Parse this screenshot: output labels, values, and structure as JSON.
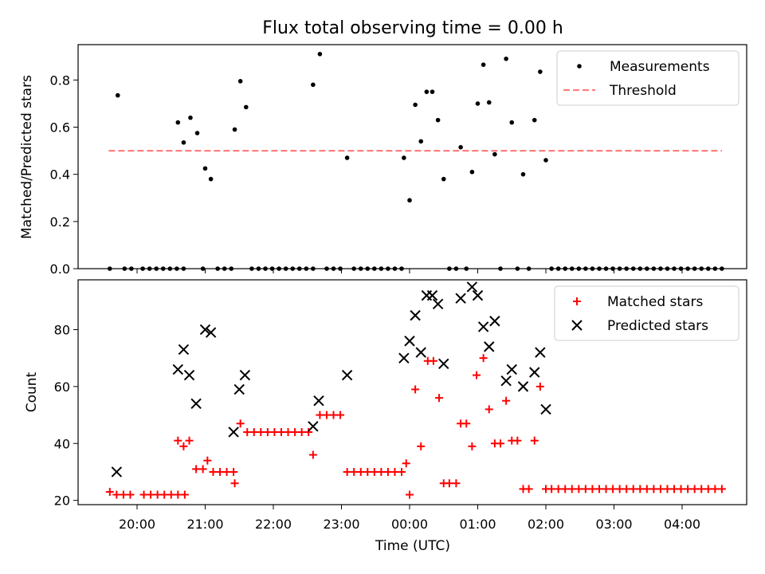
{
  "chart_data": [
    {
      "type": "scatter",
      "title": "Flux total observing time = 0.00 h",
      "ylabel": "Matched/Predicted stars",
      "ylim": [
        0.0,
        0.95
      ],
      "yticks": [
        "0.0",
        "0.2",
        "0.4",
        "0.6",
        "0.8"
      ],
      "xticks": [
        "20:00",
        "21:00",
        "22:00",
        "23:00",
        "00:00",
        "01:00",
        "02:00",
        "03:00",
        "04:00"
      ],
      "legend_position": "top-right",
      "legend": [
        "Measurements",
        "Threshold"
      ],
      "series": [
        {
          "name": "Measurements",
          "marker": "dot",
          "color": "#000000",
          "points": [
            [
              "19:36",
              0
            ],
            [
              "19:43",
              0.735
            ],
            [
              "19:49",
              0
            ],
            [
              "19:55",
              0
            ],
            [
              "20:05",
              0
            ],
            [
              "20:11",
              0
            ],
            [
              "20:17",
              0
            ],
            [
              "20:23",
              0
            ],
            [
              "20:29",
              0
            ],
            [
              "20:35",
              0
            ],
            [
              "20:41",
              0
            ],
            [
              "20:36",
              0.62
            ],
            [
              "20:41",
              0.535
            ],
            [
              "20:47",
              0.64
            ],
            [
              "20:53",
              0.575
            ],
            [
              "20:58",
              0
            ],
            [
              "21:00",
              0.425
            ],
            [
              "21:05",
              0.38
            ],
            [
              "21:11",
              0
            ],
            [
              "21:17",
              0
            ],
            [
              "21:23",
              0
            ],
            [
              "21:26",
              0.59
            ],
            [
              "21:31",
              0.795
            ],
            [
              "21:36",
              0.685
            ],
            [
              "21:41",
              0
            ],
            [
              "21:47",
              0
            ],
            [
              "21:53",
              0
            ],
            [
              "21:59",
              0
            ],
            [
              "22:05",
              0
            ],
            [
              "22:11",
              0
            ],
            [
              "22:17",
              0
            ],
            [
              "22:23",
              0
            ],
            [
              "22:29",
              0
            ],
            [
              "22:35",
              0
            ],
            [
              "22:35",
              0.78
            ],
            [
              "22:41",
              0.91
            ],
            [
              "22:47",
              0
            ],
            [
              "22:53",
              0
            ],
            [
              "22:59",
              0
            ],
            [
              "23:05",
              0.47
            ],
            [
              "23:11",
              0
            ],
            [
              "23:17",
              0
            ],
            [
              "23:23",
              0
            ],
            [
              "23:29",
              0
            ],
            [
              "23:35",
              0
            ],
            [
              "23:41",
              0
            ],
            [
              "23:47",
              0
            ],
            [
              "23:53",
              0
            ],
            [
              "23:55",
              0.47
            ],
            [
              "00:00",
              0.29
            ],
            [
              "00:05",
              0.695
            ],
            [
              "00:10",
              0.54
            ],
            [
              "00:15",
              0.75
            ],
            [
              "00:20",
              0.75
            ],
            [
              "00:25",
              0.63
            ],
            [
              "00:30",
              0.38
            ],
            [
              "00:35",
              0
            ],
            [
              "00:41",
              0
            ],
            [
              "00:45",
              0.515
            ],
            [
              "00:50",
              0
            ],
            [
              "00:55",
              0.41
            ],
            [
              "01:00",
              0.7
            ],
            [
              "01:05",
              0.865
            ],
            [
              "01:10",
              0.705
            ],
            [
              "01:15",
              0.485
            ],
            [
              "01:20",
              0
            ],
            [
              "01:25",
              0.89
            ],
            [
              "01:30",
              0.62
            ],
            [
              "01:35",
              0
            ],
            [
              "01:40",
              0.4
            ],
            [
              "01:45",
              0
            ],
            [
              "01:50",
              0.63
            ],
            [
              "01:55",
              0.835
            ],
            [
              "02:00",
              0.46
            ],
            [
              "02:05",
              0
            ],
            [
              "02:11",
              0
            ],
            [
              "02:17",
              0
            ],
            [
              "02:23",
              0
            ],
            [
              "02:29",
              0
            ],
            [
              "02:35",
              0
            ],
            [
              "02:41",
              0
            ],
            [
              "02:47",
              0
            ],
            [
              "02:53",
              0
            ],
            [
              "02:59",
              0
            ],
            [
              "03:05",
              0
            ],
            [
              "03:11",
              0
            ],
            [
              "03:17",
              0
            ],
            [
              "03:23",
              0
            ],
            [
              "03:29",
              0
            ],
            [
              "03:35",
              0
            ],
            [
              "03:41",
              0
            ],
            [
              "03:47",
              0
            ],
            [
              "03:53",
              0
            ],
            [
              "03:59",
              0
            ],
            [
              "04:05",
              0
            ],
            [
              "04:11",
              0
            ],
            [
              "04:17",
              0
            ],
            [
              "04:23",
              0
            ],
            [
              "04:29",
              0
            ],
            [
              "04:35",
              0
            ]
          ]
        },
        {
          "name": "Threshold",
          "style": "dashed-line",
          "color": "#ff7f7f",
          "points": [
            [
              "19:35",
              0.5
            ],
            [
              "04:35",
              0.5
            ]
          ]
        }
      ]
    },
    {
      "type": "scatter",
      "xlabel": "Time (UTC)",
      "ylabel": "Count",
      "ylim": [
        18.5,
        97.5
      ],
      "yticks": [
        "20",
        "40",
        "60",
        "80"
      ],
      "xticks": [
        "20:00",
        "21:00",
        "22:00",
        "23:00",
        "00:00",
        "01:00",
        "02:00",
        "03:00",
        "04:00"
      ],
      "legend_position": "top-right",
      "legend": [
        "Matched stars",
        "Predicted stars"
      ],
      "series": [
        {
          "name": "Matched stars",
          "marker": "plus",
          "color": "#ff0000",
          "points": [
            [
              "19:36",
              23
            ],
            [
              "19:42",
              22
            ],
            [
              "19:48",
              22
            ],
            [
              "19:54",
              22
            ],
            [
              "20:06",
              22
            ],
            [
              "20:12",
              22
            ],
            [
              "20:18",
              22
            ],
            [
              "20:24",
              22
            ],
            [
              "20:30",
              22
            ],
            [
              "20:36",
              22
            ],
            [
              "20:42",
              22
            ],
            [
              "20:36",
              41
            ],
            [
              "20:41",
              39
            ],
            [
              "20:46",
              41
            ],
            [
              "20:52",
              31
            ],
            [
              "20:58",
              31
            ],
            [
              "21:02",
              34
            ],
            [
              "21:07",
              30
            ],
            [
              "21:13",
              30
            ],
            [
              "21:19",
              30
            ],
            [
              "21:25",
              30
            ],
            [
              "21:26",
              26
            ],
            [
              "21:31",
              47
            ],
            [
              "21:37",
              44
            ],
            [
              "21:43",
              44
            ],
            [
              "21:49",
              44
            ],
            [
              "21:55",
              44
            ],
            [
              "22:01",
              44
            ],
            [
              "22:07",
              44
            ],
            [
              "22:13",
              44
            ],
            [
              "22:19",
              44
            ],
            [
              "22:25",
              44
            ],
            [
              "22:31",
              44
            ],
            [
              "22:35",
              36
            ],
            [
              "22:41",
              50
            ],
            [
              "22:47",
              50
            ],
            [
              "22:53",
              50
            ],
            [
              "22:59",
              50
            ],
            [
              "23:05",
              30
            ],
            [
              "23:11",
              30
            ],
            [
              "23:17",
              30
            ],
            [
              "23:23",
              30
            ],
            [
              "23:29",
              30
            ],
            [
              "23:35",
              30
            ],
            [
              "23:41",
              30
            ],
            [
              "23:47",
              30
            ],
            [
              "23:53",
              30
            ],
            [
              "23:57",
              33
            ],
            [
              "00:00",
              22
            ],
            [
              "00:05",
              59
            ],
            [
              "00:10",
              39
            ],
            [
              "00:16",
              69
            ],
            [
              "00:21",
              69
            ],
            [
              "00:26",
              56
            ],
            [
              "00:30",
              26
            ],
            [
              "00:35",
              26
            ],
            [
              "00:41",
              26
            ],
            [
              "00:45",
              47
            ],
            [
              "00:50",
              47
            ],
            [
              "00:55",
              39
            ],
            [
              "00:59",
              64
            ],
            [
              "01:05",
              70
            ],
            [
              "01:10",
              52
            ],
            [
              "01:15",
              40
            ],
            [
              "01:20",
              40
            ],
            [
              "01:25",
              55
            ],
            [
              "01:30",
              41
            ],
            [
              "01:35",
              41
            ],
            [
              "01:40",
              24
            ],
            [
              "01:45",
              24
            ],
            [
              "01:50",
              41
            ],
            [
              "01:55",
              60
            ],
            [
              "02:00",
              24
            ],
            [
              "02:05",
              24
            ],
            [
              "02:11",
              24
            ],
            [
              "02:17",
              24
            ],
            [
              "02:23",
              24
            ],
            [
              "02:29",
              24
            ],
            [
              "02:35",
              24
            ],
            [
              "02:41",
              24
            ],
            [
              "02:47",
              24
            ],
            [
              "02:53",
              24
            ],
            [
              "02:59",
              24
            ],
            [
              "03:05",
              24
            ],
            [
              "03:11",
              24
            ],
            [
              "03:17",
              24
            ],
            [
              "03:23",
              24
            ],
            [
              "03:29",
              24
            ],
            [
              "03:35",
              24
            ],
            [
              "03:41",
              24
            ],
            [
              "03:47",
              24
            ],
            [
              "03:53",
              24
            ],
            [
              "03:59",
              24
            ],
            [
              "04:05",
              24
            ],
            [
              "04:11",
              24
            ],
            [
              "04:17",
              24
            ],
            [
              "04:23",
              24
            ],
            [
              "04:29",
              24
            ],
            [
              "04:35",
              24
            ]
          ]
        },
        {
          "name": "Predicted stars",
          "marker": "x",
          "color": "#000000",
          "points": [
            [
              "19:42",
              30
            ],
            [
              "20:36",
              66
            ],
            [
              "20:41",
              73
            ],
            [
              "20:46",
              64
            ],
            [
              "20:52",
              54
            ],
            [
              "21:00",
              80
            ],
            [
              "21:05",
              79
            ],
            [
              "21:25",
              44
            ],
            [
              "21:30",
              59
            ],
            [
              "21:35",
              64
            ],
            [
              "22:35",
              46
            ],
            [
              "22:40",
              55
            ],
            [
              "23:05",
              64
            ],
            [
              "23:55",
              70
            ],
            [
              "00:00",
              76
            ],
            [
              "00:05",
              85
            ],
            [
              "00:10",
              72
            ],
            [
              "00:15",
              92
            ],
            [
              "00:20",
              92
            ],
            [
              "00:25",
              89
            ],
            [
              "00:30",
              68
            ],
            [
              "00:45",
              91
            ],
            [
              "00:55",
              95
            ],
            [
              "01:00",
              92
            ],
            [
              "01:05",
              81
            ],
            [
              "01:10",
              74
            ],
            [
              "01:15",
              83
            ],
            [
              "01:25",
              62
            ],
            [
              "01:30",
              66
            ],
            [
              "01:40",
              60
            ],
            [
              "01:50",
              65
            ],
            [
              "01:55",
              72
            ],
            [
              "02:00",
              52
            ]
          ]
        }
      ]
    }
  ]
}
